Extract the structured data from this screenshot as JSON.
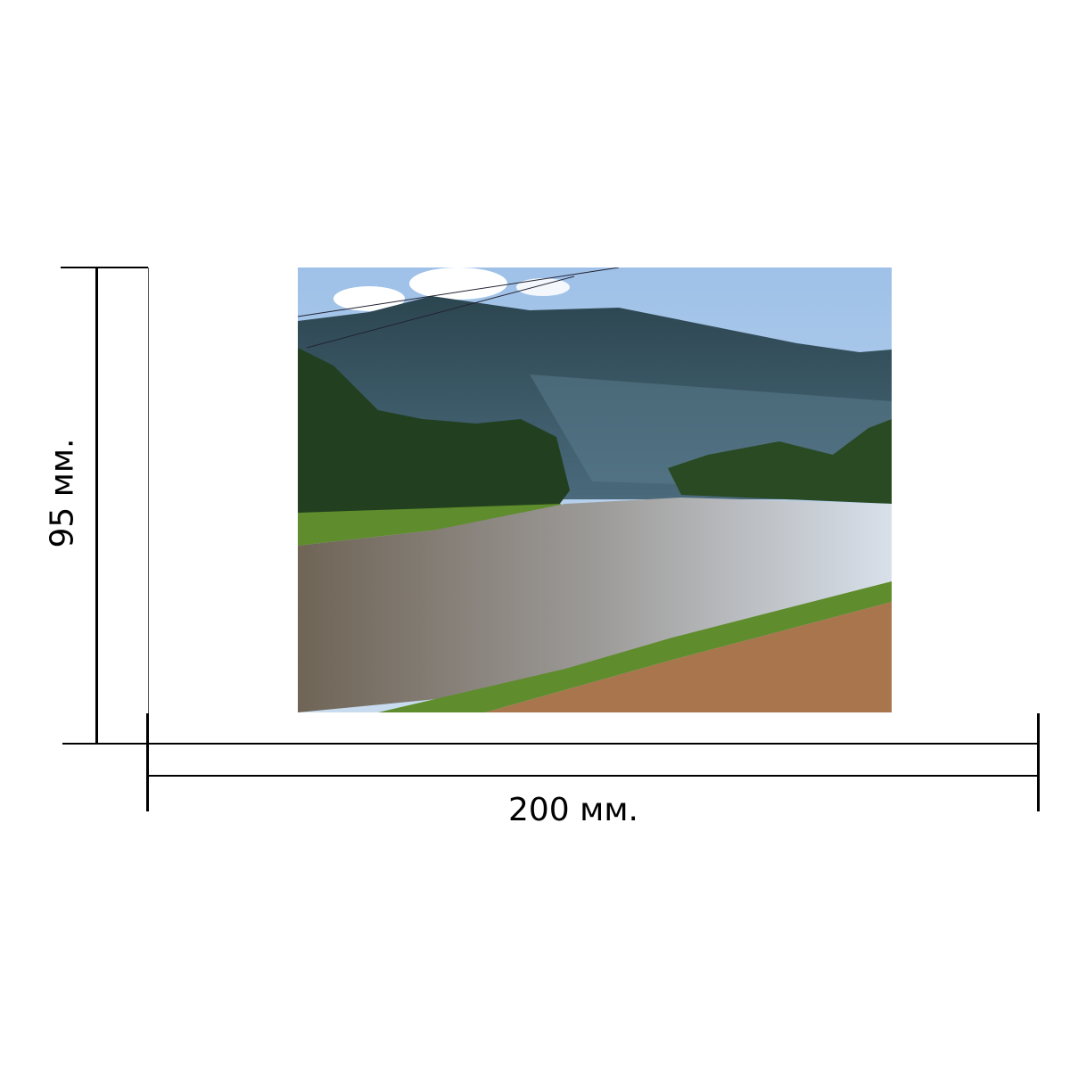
{
  "dimensions": {
    "width_label": "200 мм.",
    "height_label": "95 мм."
  },
  "photo": {
    "subject": "river-landscape",
    "colors": {
      "sky": "#a9c8ea",
      "mountain": "#2f4a5a",
      "trees": "#22401f",
      "water": "#7d7466",
      "sand": "#a9754d",
      "grass": "#5f8c2c"
    }
  }
}
